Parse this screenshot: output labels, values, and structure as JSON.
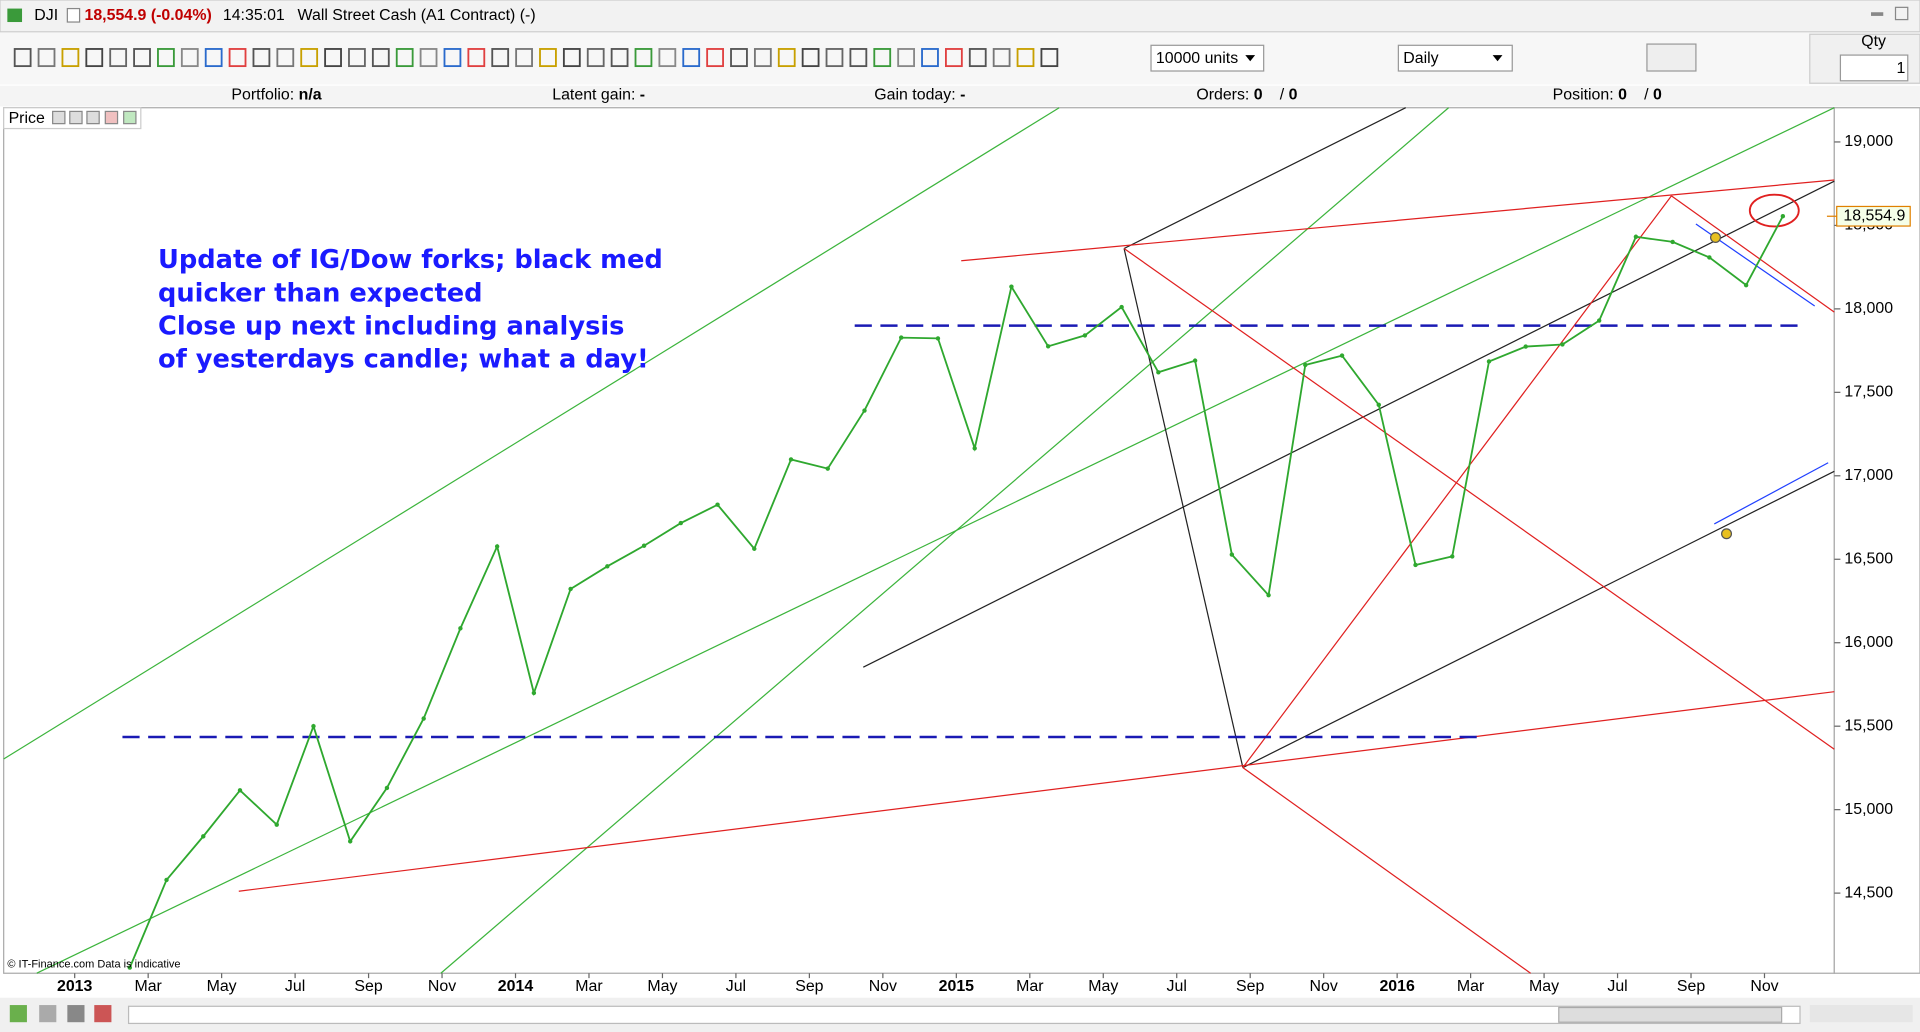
{
  "window": {
    "symbol": "DJI",
    "quote": "18,554.9 (-0.04%)",
    "time": "14:35:01",
    "instrument": "Wall Street Cash (A1 Contract) (-)"
  },
  "toolbar": {
    "units": "10000 units",
    "period": "Daily",
    "qty_label": "Qty",
    "qty": "1"
  },
  "info_bar": [
    {
      "label": "Portfolio:",
      "value": "n/a"
    },
    {
      "label": "Latent gain:",
      "value": "-"
    },
    {
      "label": "Gain today:",
      "value": "-"
    },
    {
      "label": "Orders:",
      "value": "0",
      "value2": "0"
    },
    {
      "label": "Position:",
      "value": "0",
      "value2": "0"
    }
  ],
  "panel_label": "Price",
  "footer": "© IT-Finance.com  Data is indicative",
  "chart_data": {
    "type": "line",
    "annotations": [
      "Update of IG/Dow forks; black med",
      "quicker than expected",
      "Close up next including analysis",
      "of yesterdays candle; what a day!"
    ],
    "categories": [
      "2013",
      null,
      "Mar",
      null,
      "May",
      null,
      "Jul",
      null,
      "Sep",
      null,
      "Nov",
      null,
      "2014",
      null,
      "Mar",
      null,
      "May",
      null,
      "Jul",
      null,
      "Sep",
      null,
      "Nov",
      null,
      "2015",
      null,
      "Mar",
      null,
      "May",
      null,
      "Jul",
      null,
      "Sep",
      null,
      "Nov",
      null,
      "2016",
      null,
      "Mar",
      null,
      "May",
      null,
      "Jul",
      null,
      "Sep",
      null,
      "Nov"
    ],
    "series": [
      {
        "name": "Price",
        "color": "#2fa82f",
        "values": [
          null,
          14054,
          14579,
          14840,
          15116,
          14910,
          15500,
          14810,
          15130,
          15546,
          16086,
          16577,
          15699,
          16322,
          16458,
          16581,
          16717,
          16827,
          16563,
          17098,
          17043,
          17391,
          17828,
          17823,
          17165,
          18133,
          17776,
          17841,
          18011,
          17620,
          17690,
          16528,
          16285,
          17664,
          17720,
          17425,
          16466,
          16517,
          17685,
          17774,
          17787,
          17930,
          18432,
          18401,
          18308,
          18142,
          18555
        ]
      }
    ],
    "last_price": {
      "value": 18554.9,
      "label": "18,554.9"
    },
    "ylim": [
      14020,
      19205
    ],
    "yticks": [
      {
        "value": 14500,
        "label": "14,500"
      },
      {
        "value": 15000,
        "label": "15,000"
      },
      {
        "value": 15500,
        "label": "15,500"
      },
      {
        "value": 16000,
        "label": "16,000"
      },
      {
        "value": 16500,
        "label": "16,500"
      },
      {
        "value": 17000,
        "label": "17,000"
      },
      {
        "value": 17500,
        "label": "17,500"
      },
      {
        "value": 18000,
        "label": "18,000"
      },
      {
        "value": 18500,
        "label": "18,500"
      },
      {
        "value": 19000,
        "label": "19,000"
      }
    ],
    "grid": false
  }
}
